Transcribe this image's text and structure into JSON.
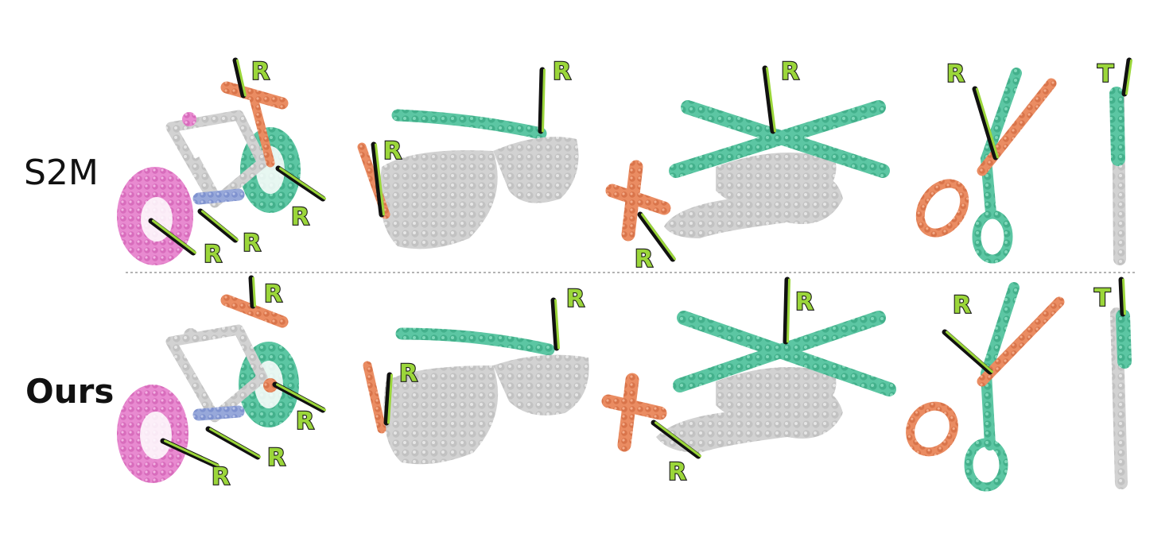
{
  "rows": [
    {
      "label": "S2M"
    },
    {
      "label": "Ours"
    }
  ],
  "axis_letters": {
    "rotation": "R",
    "translation": "T"
  },
  "objects": [
    "bicycle",
    "eyeglasses",
    "helicopter",
    "scissors",
    "pen"
  ],
  "colors": {
    "body": "#cfcfcf",
    "orange": "#e8855a",
    "teal": "#4fbf9a",
    "pink": "#e57fc9",
    "blue": "#8fa1d6",
    "axis_green": "#9bd63a",
    "axis_black": "#111111",
    "divider": "#9a9a9a"
  }
}
